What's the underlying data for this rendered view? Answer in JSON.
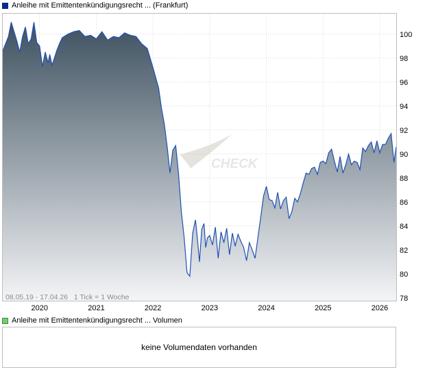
{
  "price_legend": "Anleihe mit Emittentenkündigungsrecht ... (Frankfurt)",
  "volume_legend": "Anleihe mit Emittentenkündigungsrecht ... Volumen",
  "volume_message": "keine Volumendaten vorhanden",
  "range_note": "08.05.19 - 17.04.26   1 Tick = 1 Woche",
  "colors": {
    "line": "#1e50b4",
    "fill_top": "#3e5160",
    "fill_bottom": "#f4f5f7",
    "grid": "#d9d9d9",
    "price_swatch": "#0a2a8f",
    "volume_swatch": "#6fcc6f"
  },
  "chart_data": {
    "type": "area",
    "xlabel": "",
    "ylabel": "",
    "x_ticks": [
      "2020",
      "2021",
      "2022",
      "2023",
      "2024",
      "2025",
      "2026"
    ],
    "y_ticks": [
      78,
      80,
      82,
      84,
      86,
      88,
      90,
      92,
      94,
      96,
      98,
      100
    ],
    "xlim": [
      2019.35,
      2026.29
    ],
    "ylim": [
      77.7,
      101.7
    ],
    "grid": true,
    "series": [
      {
        "x": [
          2019.35,
          2019.45,
          2019.5,
          2019.55,
          2019.6,
          2019.65,
          2019.7,
          2019.75,
          2019.8,
          2019.85,
          2019.9,
          2019.95,
          2020.0,
          2020.05,
          2020.1,
          2020.15,
          2020.18,
          2020.22,
          2020.26,
          2020.3,
          2020.35,
          2020.4,
          2020.5,
          2020.6,
          2020.7,
          2020.8,
          2020.9,
          2021.0,
          2021.1,
          2021.2,
          2021.3,
          2021.4,
          2021.5,
          2021.6,
          2021.7,
          2021.8,
          2021.9,
          2022.0,
          2022.1,
          2022.15,
          2022.2,
          2022.25,
          2022.3,
          2022.35,
          2022.4,
          2022.45,
          2022.5,
          2022.55,
          2022.6,
          2022.65,
          2022.7,
          2022.75,
          2022.78,
          2022.82,
          2022.86,
          2022.9,
          2022.93,
          2022.96,
          2023.0,
          2023.05,
          2023.1,
          2023.15,
          2023.2,
          2023.25,
          2023.3,
          2023.35,
          2023.4,
          2023.45,
          2023.5,
          2023.55,
          2023.6,
          2023.65,
          2023.7,
          2023.75,
          2023.8,
          2023.85,
          2023.9,
          2023.95,
          2024.0,
          2024.05,
          2024.1,
          2024.15,
          2024.2,
          2024.25,
          2024.3,
          2024.35,
          2024.4,
          2024.45,
          2024.5,
          2024.55,
          2024.6,
          2024.65,
          2024.7,
          2024.75,
          2024.8,
          2024.85,
          2024.9,
          2024.95,
          2025.0,
          2025.05,
          2025.1,
          2025.15,
          2025.2,
          2025.25,
          2025.3,
          2025.35,
          2025.4,
          2025.45,
          2025.5,
          2025.55,
          2025.6,
          2025.65,
          2025.7,
          2025.75,
          2025.8,
          2025.85,
          2025.9,
          2025.95,
          2026.0,
          2026.05,
          2026.1,
          2026.15,
          2026.2,
          2026.25,
          2026.29
        ],
        "y": [
          98.6,
          99.8,
          101.0,
          100.2,
          99.4,
          98.5,
          99.8,
          100.6,
          99.2,
          99.6,
          101.0,
          99.3,
          99.0,
          97.3,
          98.5,
          97.6,
          98.3,
          97.4,
          98.0,
          98.6,
          99.2,
          99.7,
          100.0,
          100.2,
          100.3,
          99.8,
          99.9,
          99.6,
          100.2,
          99.5,
          99.8,
          99.7,
          100.1,
          99.9,
          99.8,
          99.2,
          98.8,
          97.2,
          95.5,
          93.8,
          92.5,
          90.6,
          88.4,
          90.3,
          90.7,
          88.4,
          85.2,
          83.0,
          80.1,
          79.8,
          83.4,
          84.5,
          83.1,
          81.0,
          83.7,
          84.2,
          82.2,
          83.0,
          83.2,
          82.4,
          83.9,
          81.3,
          83.5,
          82.6,
          83.8,
          81.6,
          83.4,
          82.3,
          83.3,
          82.7,
          82.2,
          81.1,
          82.6,
          82.0,
          81.3,
          83.0,
          84.7,
          86.5,
          87.3,
          86.2,
          86.1,
          85.5,
          86.8,
          85.4,
          86.1,
          86.4,
          84.6,
          85.2,
          86.3,
          86.0,
          86.7,
          87.6,
          88.4,
          88.3,
          88.8,
          88.9,
          88.3,
          89.3,
          89.4,
          89.2,
          90.1,
          90.4,
          89.4,
          88.5,
          89.8,
          88.4,
          89.1,
          90.0,
          89.1,
          89.4,
          89.3,
          88.7,
          90.5,
          90.2,
          90.7,
          91.0,
          90.1,
          91.1,
          90.1,
          90.8,
          90.8,
          91.3,
          91.7,
          89.3,
          90.6
        ]
      }
    ]
  }
}
